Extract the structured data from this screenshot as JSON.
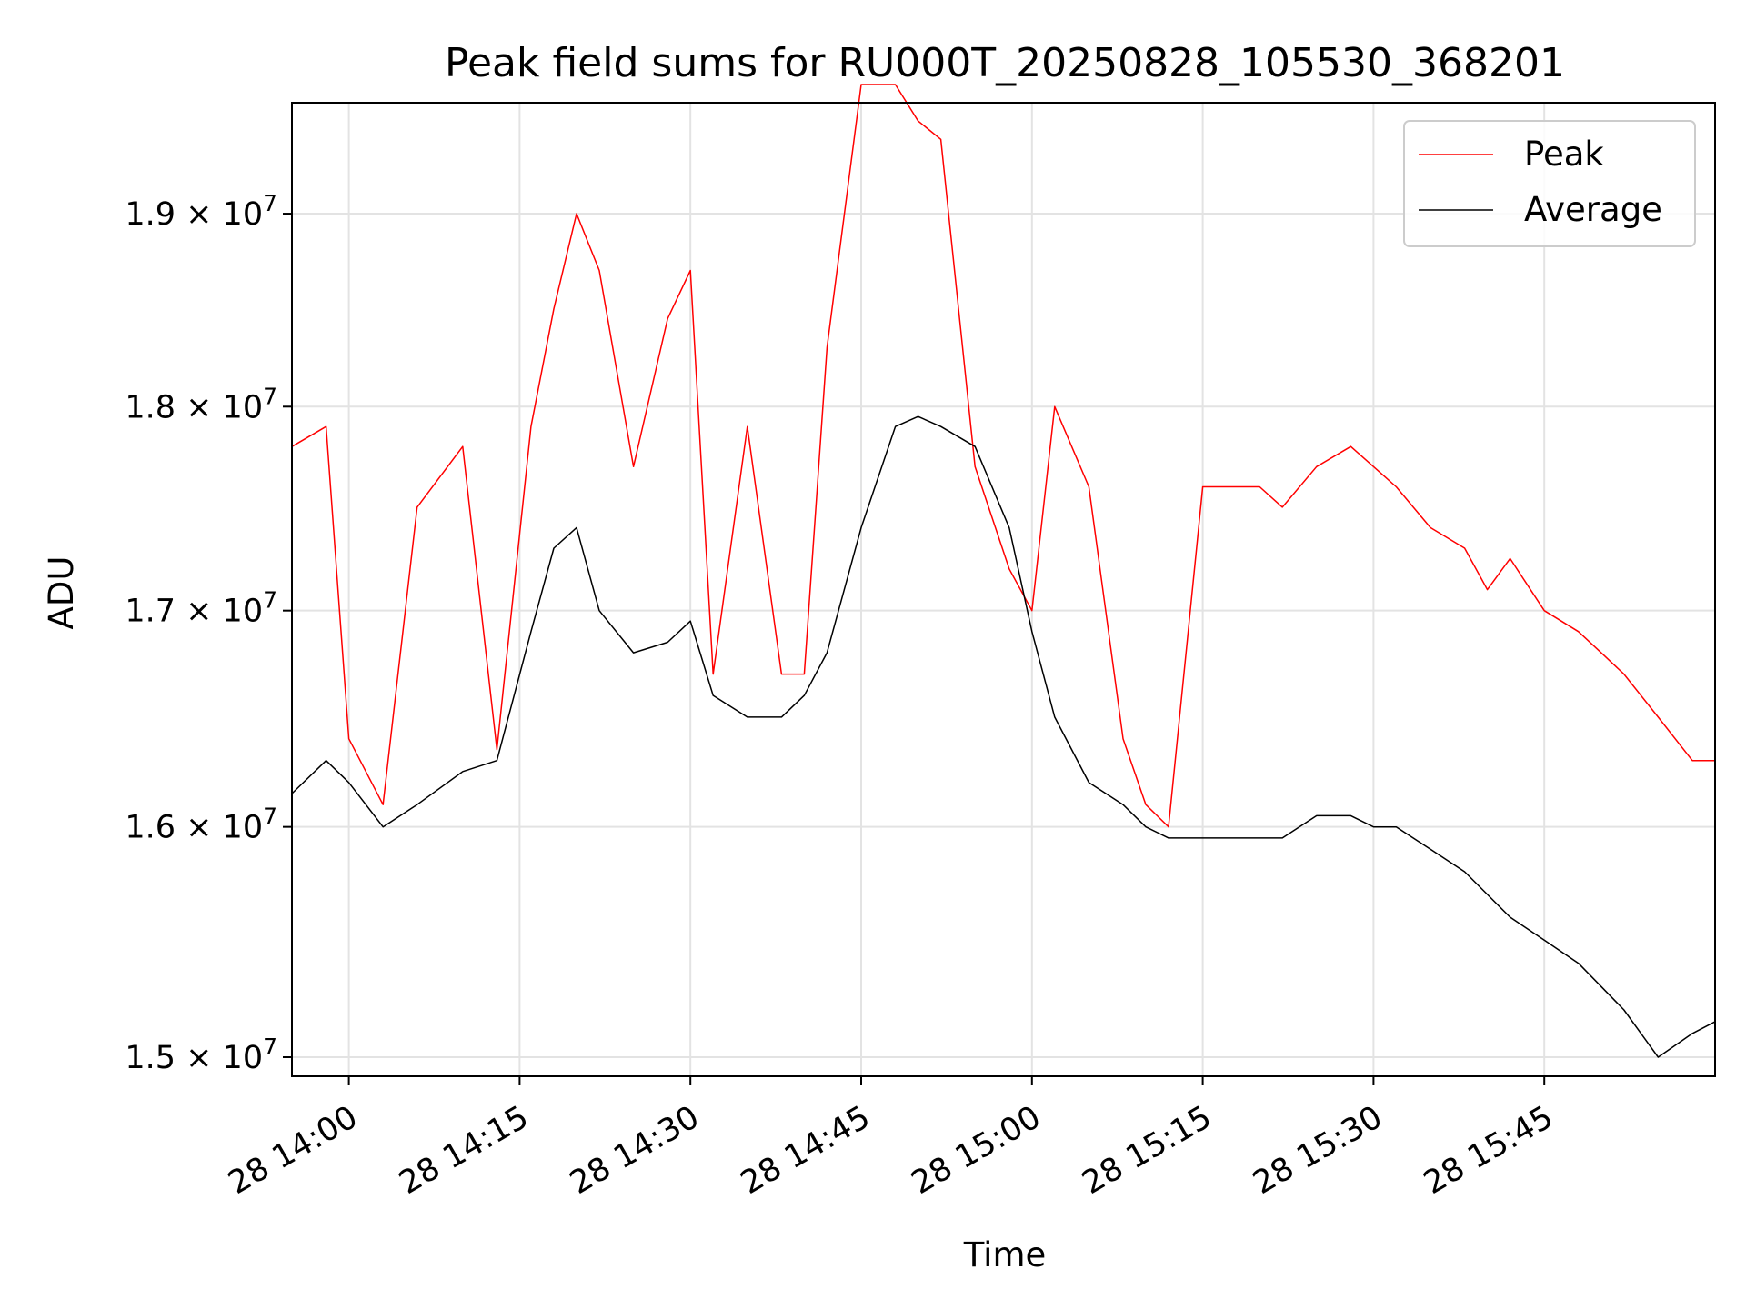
{
  "chart_data": {
    "type": "line",
    "title": "Peak field sums for RU000T_20250828_105530_368201",
    "xlabel": "Time",
    "ylabel": "ADU",
    "y_scale": "log",
    "xlim": [
      "28 13:55",
      "28 16:00"
    ],
    "ylim": [
      14920000,
      19600000
    ],
    "grid": true,
    "legend_position": "top-right",
    "x_ticks": [
      "28 14:00",
      "28 14:15",
      "28 14:30",
      "28 14:45",
      "28 15:00",
      "28 15:15",
      "28 15:30",
      "28 15:45"
    ],
    "y_ticks": [
      {
        "value": 15000000,
        "mantissa": "1.5",
        "exponent": "7"
      },
      {
        "value": 16000000,
        "mantissa": "1.6",
        "exponent": "7"
      },
      {
        "value": 17000000,
        "mantissa": "1.7",
        "exponent": "7"
      },
      {
        "value": 18000000,
        "mantissa": "1.8",
        "exponent": "7"
      },
      {
        "value": 19000000,
        "mantissa": "1.9",
        "exponent": "7"
      }
    ],
    "x": [
      "13:55",
      "13:58",
      "14:00",
      "14:03",
      "14:06",
      "14:10",
      "14:13",
      "14:16",
      "14:18",
      "14:20",
      "14:22",
      "14:25",
      "14:28",
      "14:30",
      "14:32",
      "14:35",
      "14:38",
      "14:40",
      "14:42",
      "14:45",
      "14:48",
      "14:50",
      "14:52",
      "14:55",
      "14:58",
      "15:00",
      "15:02",
      "15:05",
      "15:08",
      "15:10",
      "15:12",
      "15:15",
      "15:18",
      "15:20",
      "15:22",
      "15:25",
      "15:28",
      "15:30",
      "15:32",
      "15:35",
      "15:38",
      "15:40",
      "15:42",
      "15:45",
      "15:48",
      "15:50",
      "15:52",
      "15:55",
      "15:58",
      "16:00"
    ],
    "series": [
      {
        "name": "Peak",
        "color": "#ff0000",
        "values": [
          17800000,
          17900000,
          16400000,
          16100000,
          17500000,
          17800000,
          16350000,
          17900000,
          18500000,
          19000000,
          18700000,
          17700000,
          18450000,
          18700000,
          16700000,
          17900000,
          16700000,
          16700000,
          18300000,
          19700000,
          19700000,
          19500000,
          19400000,
          17700000,
          17200000,
          17000000,
          18000000,
          17600000,
          16400000,
          16100000,
          16000000,
          17600000,
          17600000,
          17600000,
          17500000,
          17700000,
          17800000,
          17700000,
          17600000,
          17400000,
          17300000,
          17100000,
          17250000,
          17000000,
          16900000,
          16800000,
          16700000,
          16500000,
          16300000,
          16300000
        ]
      },
      {
        "name": "Average",
        "color": "#000000",
        "values": [
          16150000,
          16300000,
          16200000,
          16000000,
          16100000,
          16250000,
          16300000,
          16900000,
          17300000,
          17400000,
          17000000,
          16800000,
          16850000,
          16950000,
          16600000,
          16500000,
          16500000,
          16600000,
          16800000,
          17400000,
          17900000,
          17950000,
          17900000,
          17800000,
          17400000,
          16900000,
          16500000,
          16200000,
          16100000,
          16000000,
          15950000,
          15950000,
          15950000,
          15950000,
          15950000,
          16050000,
          16050000,
          16000000,
          16000000,
          15900000,
          15800000,
          15700000,
          15600000,
          15500000,
          15400000,
          15300000,
          15200000,
          15000000,
          15100000,
          15150000
        ]
      }
    ]
  },
  "legend": {
    "peak_label": "Peak",
    "average_label": "Average"
  }
}
